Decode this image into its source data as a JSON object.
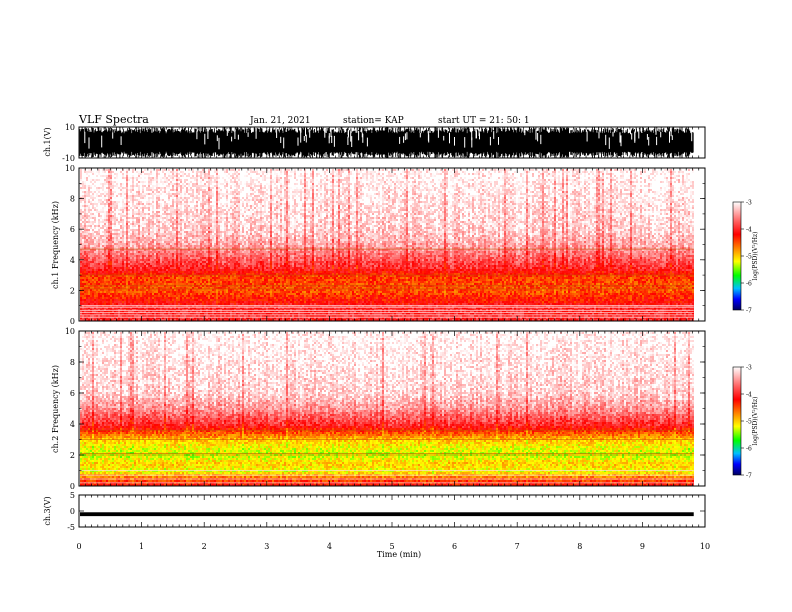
{
  "header": {
    "title": "VLF Spectra",
    "date": "Jan. 21, 2021",
    "station": "station= KAP",
    "start_ut": "start UT =  21: 50: 1"
  },
  "colors": {
    "white": "#ffffff",
    "red": "#ff0000",
    "orange": "#ff8000",
    "yellow": "#ffff00",
    "green": "#00ff00",
    "blue": "#0000ff",
    "navy": "#000080",
    "black": "#000000"
  },
  "chart_data": [
    {
      "type": "line",
      "panel": "ch1",
      "ylabel": "ch.1(V)",
      "ylim": [
        -10,
        10
      ],
      "yticks": [
        "10",
        "-10"
      ],
      "description_series": "dense black voltage waveform"
    },
    {
      "type": "heatmap",
      "panel": "spec1",
      "ylabel": "ch.1 Frequency (kHz)",
      "ylim": [
        0,
        10
      ],
      "yticks": [
        "0",
        "2",
        "4",
        "6",
        "8",
        "10"
      ],
      "xlim": [
        0,
        10
      ],
      "colorbar": {
        "label": "log(PSD)(V²/Hz)",
        "ticks": [
          "-3",
          "-4",
          "-5",
          "-6",
          "-7"
        ],
        "range": [
          -7,
          -3
        ]
      },
      "profile": [
        {
          "freq": 0.1,
          "level": -4.0
        },
        {
          "freq": 0.6,
          "level": -4.0
        },
        {
          "freq": 1.0,
          "level": -4.0
        },
        {
          "freq": 1.3,
          "level": -4.2
        },
        {
          "freq": 2.0,
          "level": -4.5
        },
        {
          "freq": 3.0,
          "level": -4.4
        },
        {
          "freq": 3.5,
          "level": -4.0
        },
        {
          "freq": 4.0,
          "level": -3.8
        },
        {
          "freq": 5.0,
          "level": -3.4
        },
        {
          "freq": 6.0,
          "level": -3.2
        },
        {
          "freq": 10.0,
          "level": -3.0
        }
      ],
      "lines_khz": [
        0.25,
        0.4,
        0.55,
        0.7,
        0.9,
        1.0,
        2.1,
        2.3,
        3.0,
        4.7
      ]
    },
    {
      "type": "heatmap",
      "panel": "spec2",
      "ylabel": "ch.2 Frequency (kHz)",
      "ylim": [
        0,
        10
      ],
      "yticks": [
        "0",
        "2",
        "4",
        "6",
        "8",
        "10"
      ],
      "xlim": [
        0,
        10
      ],
      "colorbar": {
        "label": "log(PSD)(V²/Hz)",
        "ticks": [
          "-3",
          "-4",
          "-5",
          "-6",
          "-7"
        ],
        "range": [
          -7,
          -3
        ]
      },
      "profile": [
        {
          "freq": 0.1,
          "level": -4.2
        },
        {
          "freq": 0.5,
          "level": -4.5
        },
        {
          "freq": 1.0,
          "level": -5.2
        },
        {
          "freq": 1.5,
          "level": -5.0
        },
        {
          "freq": 2.0,
          "level": -5.3
        },
        {
          "freq": 2.5,
          "level": -5.2
        },
        {
          "freq": 3.0,
          "level": -5.0
        },
        {
          "freq": 3.5,
          "level": -4.5
        },
        {
          "freq": 4.0,
          "level": -4.0
        },
        {
          "freq": 5.0,
          "level": -3.5
        },
        {
          "freq": 6.0,
          "level": -3.2
        },
        {
          "freq": 10.0,
          "level": -3.0
        }
      ],
      "lines_khz": [
        0.2,
        0.45,
        0.7,
        1.0,
        2.0,
        2.1,
        3.0,
        3.6
      ]
    },
    {
      "type": "line",
      "panel": "ch3",
      "ylabel": "ch.3(V)",
      "ylim": [
        -5,
        5
      ],
      "yticks": [
        "5",
        "0",
        "-5"
      ],
      "description_series": "dense black band near -1 V"
    }
  ],
  "xaxis": {
    "label": "Time (min)",
    "range": [
      0,
      10
    ],
    "ticks": [
      "0",
      "1",
      "2",
      "3",
      "4",
      "5",
      "6",
      "7",
      "8",
      "9",
      "10"
    ],
    "data_end": 9.82
  }
}
